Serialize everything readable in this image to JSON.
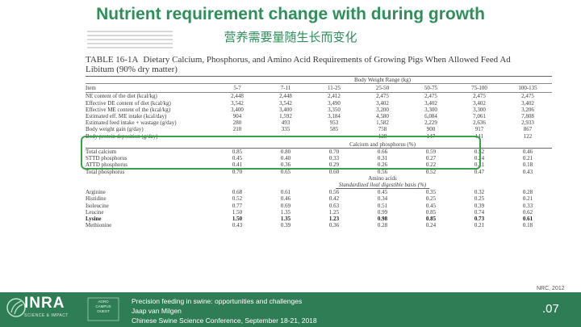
{
  "slide": {
    "title": "Nutrient requirement change with during growth",
    "subtitle": "营养需要量随生长而变化",
    "reference": "NRC, 2012",
    "page_number": ".07"
  },
  "table": {
    "title_number": "TABLE 16-1A",
    "title_text": "Dietary Calcium, Phosphorus, and Amino Acid Requirements of Growing Pigs When Allowed Feed Ad",
    "title_sub": "Libitum (90% dry matter)",
    "range_header": "Body Weight Range (kg)",
    "item_header": "Item",
    "columns": [
      "5-7",
      "7-11",
      "11-25",
      "25-50",
      "50-75",
      "75-100",
      "100-135"
    ],
    "energy_rows": [
      {
        "label": "NE content of the diet (kcal/kg)",
        "values": [
          "2,448",
          "2,448",
          "2,412",
          "2,475",
          "2,475",
          "2,475",
          "2,475"
        ]
      },
      {
        "label": "Effective DE content of diet (kcal/kg)",
        "values": [
          "3,542",
          "3,542",
          "3,490",
          "3,402",
          "3,402",
          "3,402",
          "3,402"
        ]
      },
      {
        "label": "Effective ME content of the (kcal/kg)",
        "values": [
          "3,400",
          "3,400",
          "3,350",
          "3,200",
          "3,300",
          "3,300",
          "3,206"
        ]
      },
      {
        "label": "Estimated eff. ME intake (kcal/day)",
        "values": [
          "904",
          "1,592",
          "3,184",
          "4,580",
          "6,084",
          "7,061",
          "7,808"
        ]
      }
    ],
    "growth_rows": [
      {
        "label": "Estimated feed intake + wastage (g/day)",
        "values": [
          "280",
          "493",
          "953",
          "1,582",
          "2,229",
          "2,636",
          "2,933"
        ]
      },
      {
        "label": "Body weight gain (g/day)",
        "values": [
          "210",
          "335",
          "585",
          "758",
          "900",
          "917",
          "867"
        ]
      },
      {
        "label": "Body protein deposition (g/day)",
        "values": [
          "—",
          "—",
          "—",
          "128",
          "147",
          "141",
          "122"
        ]
      }
    ],
    "mineral_header": "Calcium and phosphorus (%)",
    "mineral_rows": [
      {
        "label": "Total calcium",
        "values": [
          "0.85",
          "0.80",
          "0.70",
          "0.66",
          "0.59",
          "0.52",
          "0.46"
        ]
      },
      {
        "label": "STTD phosphorus",
        "values": [
          "0.45",
          "0.40",
          "0.33",
          "0.31",
          "0.27",
          "0.24",
          "0.21"
        ]
      },
      {
        "label": "ATTD phosphorus",
        "values": [
          "0.41",
          "0.36",
          "0.29",
          "0.26",
          "0.22",
          "0.21",
          "0.18"
        ]
      },
      {
        "label": "Total phosphorus",
        "values": [
          "0.70",
          "0.65",
          "0.60",
          "0.56",
          "0.52",
          "0.47",
          "0.43"
        ]
      }
    ],
    "amino_header": "Amino acids",
    "amino_subheader": "Standardized ileal digestible basis (%)",
    "amino_rows": [
      {
        "label": "Arginine",
        "values": [
          "0.68",
          "0.61",
          "0.56",
          "0.45",
          "0.35",
          "0.32",
          "0.28"
        ],
        "bold": false
      },
      {
        "label": "Histidine",
        "values": [
          "0.52",
          "0.46",
          "0.42",
          "0.34",
          "0.25",
          "0.25",
          "0.21"
        ],
        "bold": false
      },
      {
        "label": "Isoleucine",
        "values": [
          "0.77",
          "0.69",
          "0.63",
          "0.51",
          "0.45",
          "0.39",
          "0.33"
        ],
        "bold": false
      },
      {
        "label": "Leucine",
        "values": [
          "1.50",
          "1.35",
          "1.25",
          "0.99",
          "0.85",
          "0.74",
          "0.62"
        ],
        "bold": false
      },
      {
        "label": "Lysine",
        "values": [
          "1.50",
          "1.35",
          "1.23",
          "0.98",
          "0.85",
          "0.73",
          "0.61"
        ],
        "bold": true
      },
      {
        "label": "Methionine",
        "values": [
          "0.43",
          "0.39",
          "0.36",
          "0.28",
          "0.24",
          "0.21",
          "0.18"
        ],
        "bold": false
      }
    ]
  },
  "footer": {
    "logo_text": "INRA",
    "logo_sub": "SCIENCE & IMPACT",
    "campus_text": "AGRO CAMPUS OUEST",
    "line1": "Precision feeding in swine: opportunities and challenges",
    "line2": "Jaap van Milgen",
    "line3": "Chinese Swine Science Conference, September 18-21, 2018"
  },
  "colors": {
    "accent_green": "#2e8f5a",
    "footer_green": "#2f7d54",
    "highlight_green": "#3aa14a"
  }
}
